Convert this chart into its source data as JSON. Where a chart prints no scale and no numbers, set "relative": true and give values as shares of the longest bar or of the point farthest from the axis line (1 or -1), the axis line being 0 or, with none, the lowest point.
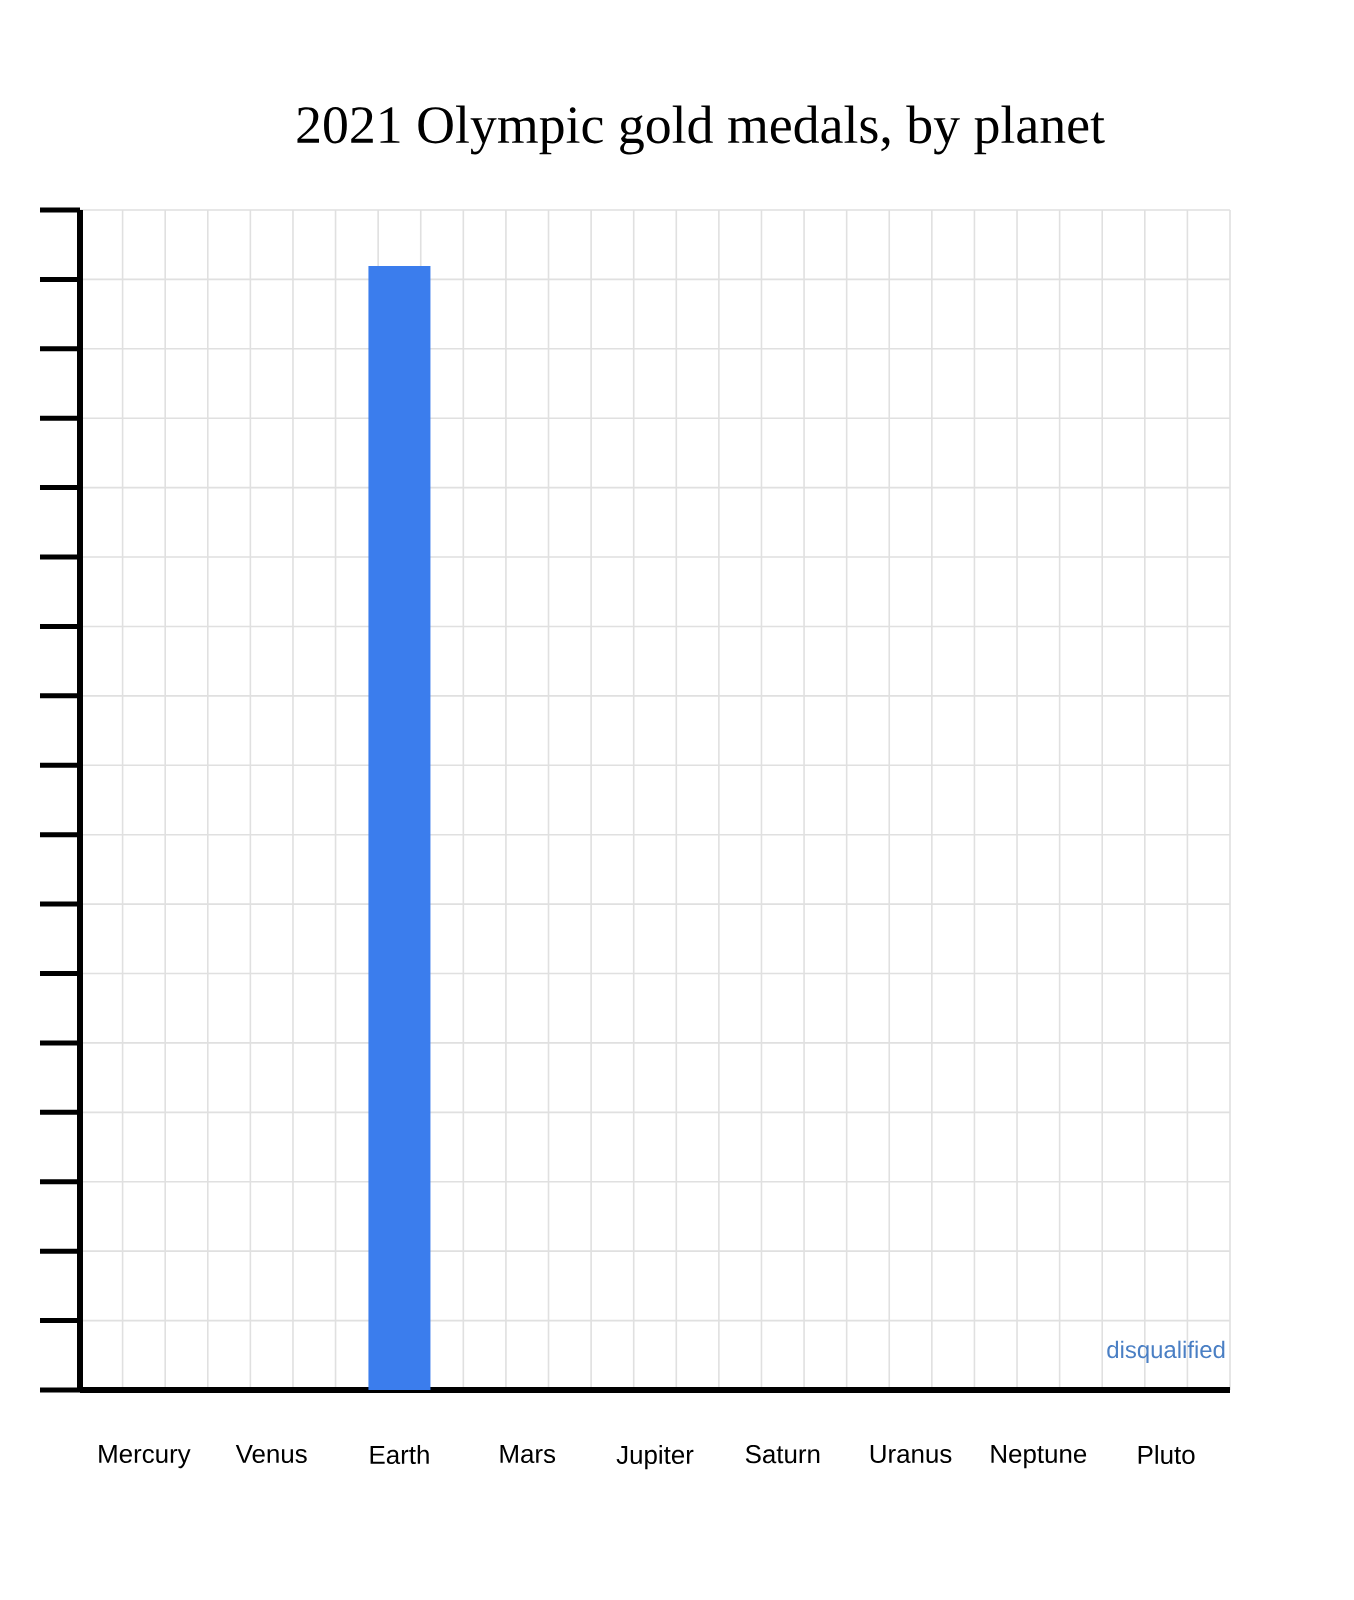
{
  "chart_data": {
    "type": "bar",
    "title": "2021 Olympic gold medals, by planet",
    "categories": [
      "Mercury",
      "Venus",
      "Earth",
      "Mars",
      "Jupiter",
      "Saturn",
      "Uranus",
      "Neptune",
      "Pluto"
    ],
    "values": [
      0,
      0,
      1,
      0,
      0,
      0,
      0,
      0,
      0
    ],
    "color": "#3b7ded",
    "relative": true,
    "grid": true,
    "annotations": [
      {
        "text": "disqualified",
        "x": "Pluto",
        "y": 0
      }
    ]
  }
}
